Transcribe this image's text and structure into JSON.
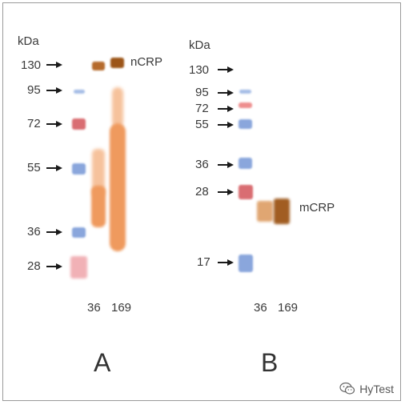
{
  "panel_a": {
    "unit": "kDa",
    "markers": [
      "130",
      "95",
      "72",
      "55",
      "36",
      "28"
    ],
    "band_label": "nCRP",
    "lanes": [
      "36",
      "169"
    ],
    "letter": "A"
  },
  "panel_b": {
    "unit": "kDa",
    "markers": [
      "130",
      "95",
      "72",
      "55",
      "36",
      "28",
      "17"
    ],
    "band_label": "mCRP",
    "lanes": [
      "36",
      "169"
    ],
    "letter": "B"
  },
  "watermark": {
    "text": "HyTest",
    "icon": "wechat-icon"
  },
  "colors": {
    "frame": "#9a9a9a",
    "marker_blue": "#8aa6dc",
    "marker_red": "#d96d72",
    "stain_orange": "#ef9a5e",
    "stain_brown": "#9c5518"
  }
}
